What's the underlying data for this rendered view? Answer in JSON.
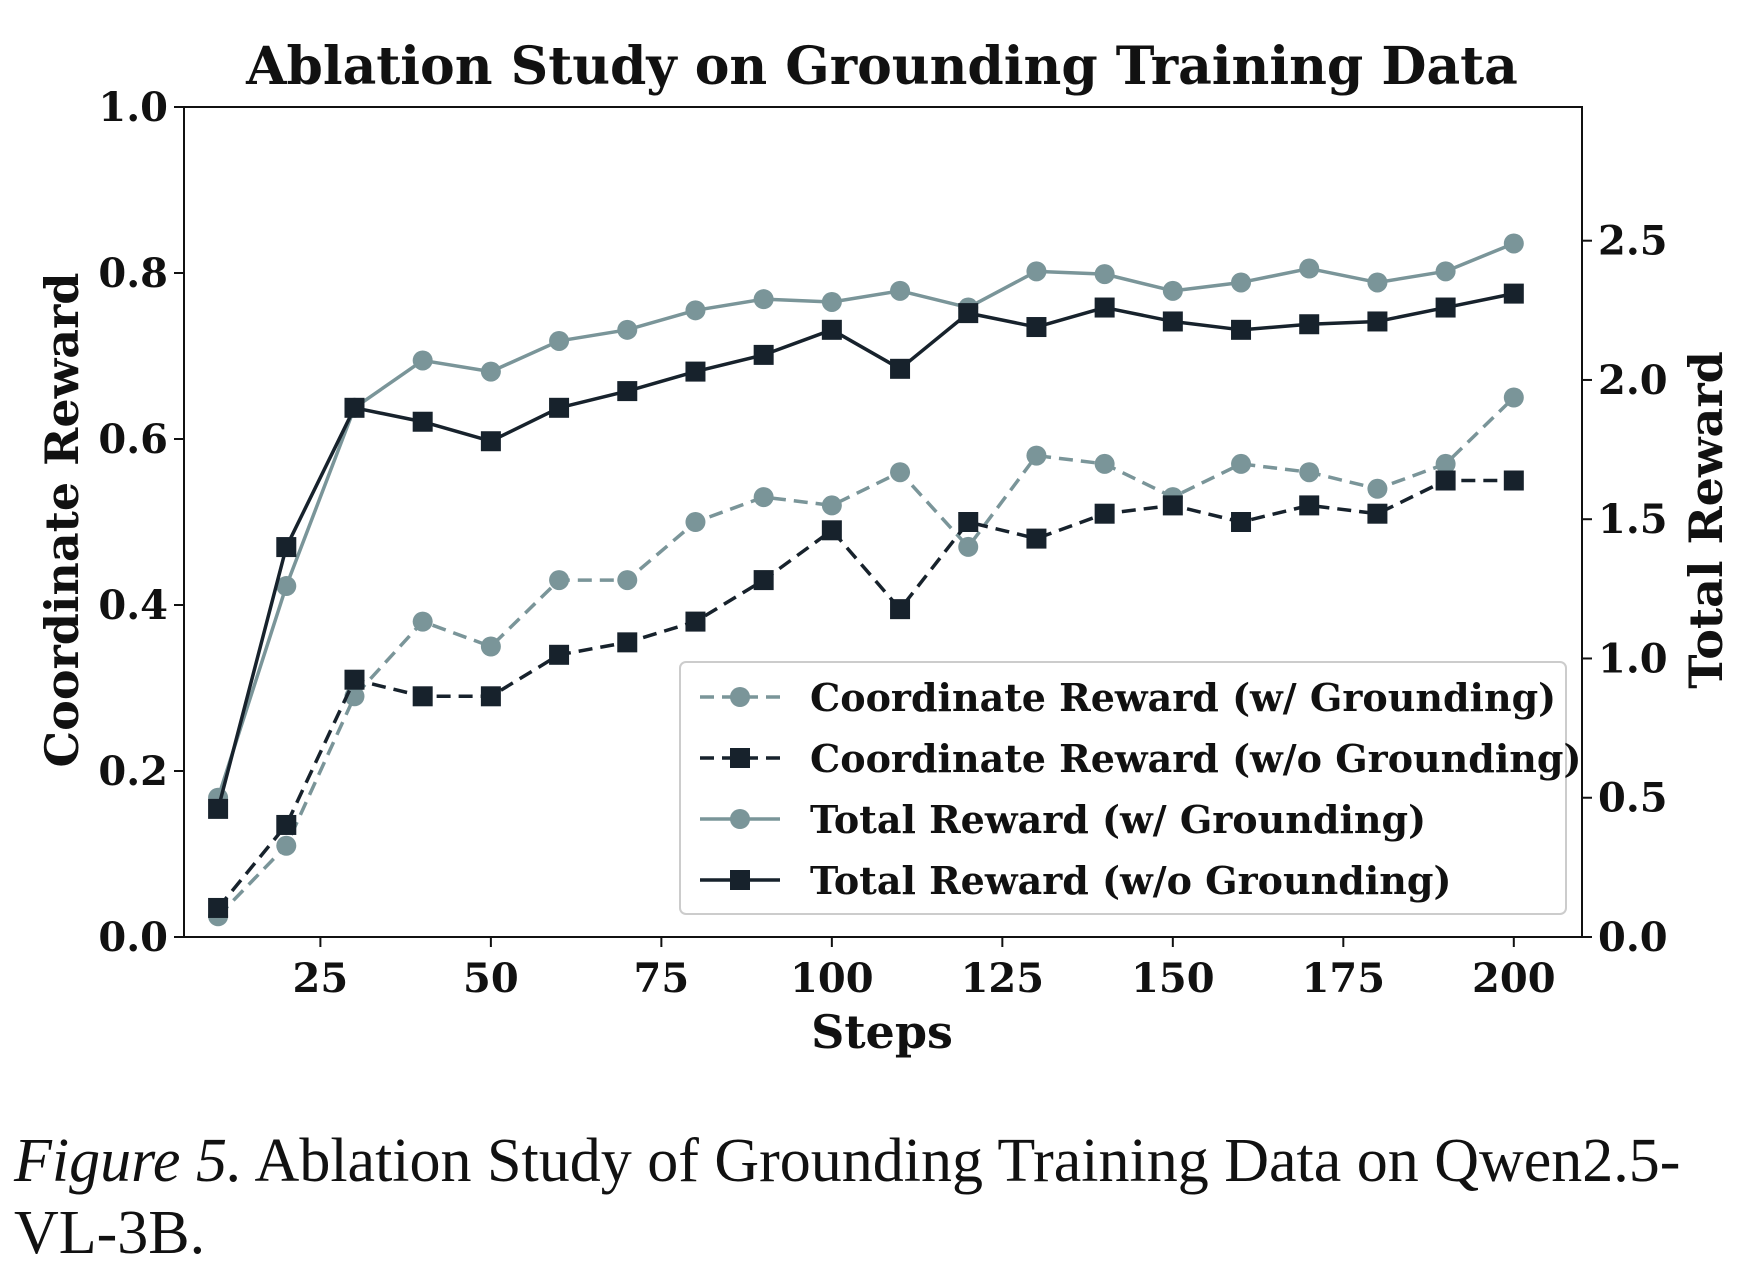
{
  "chart_data": {
    "type": "line",
    "title": "Ablation Study on Grounding Training Data",
    "xlabel": "Steps",
    "ylabel_left": "Coordinate Reward",
    "ylabel_right": "Total Reward",
    "xlim": [
      5,
      210
    ],
    "ylim_left": [
      0.0,
      1.0
    ],
    "ylim_right": [
      0.0,
      2.98
    ],
    "x_ticks": [
      25,
      50,
      75,
      100,
      125,
      150,
      175,
      200
    ],
    "y_ticks_left": [
      "0.0",
      "0.2",
      "0.4",
      "0.6",
      "0.8",
      "1.0"
    ],
    "y_ticks_right": [
      "0.0",
      "0.5",
      "1.0",
      "1.5",
      "2.0",
      "2.5"
    ],
    "grid": false,
    "legend_position": "lower-right",
    "x": [
      10,
      20,
      30,
      40,
      50,
      60,
      70,
      80,
      90,
      100,
      110,
      120,
      130,
      140,
      150,
      160,
      170,
      180,
      190,
      200
    ],
    "series": [
      {
        "name": "Coordinate Reward (w/ Grounding)",
        "axis": "left",
        "color": "#7a9599",
        "dash": true,
        "marker": "circle",
        "values": [
          0.025,
          0.11,
          0.29,
          0.38,
          0.35,
          0.43,
          0.43,
          0.5,
          0.53,
          0.52,
          0.56,
          0.47,
          0.58,
          0.57,
          0.53,
          0.57,
          0.56,
          0.54,
          0.57,
          0.65
        ]
      },
      {
        "name": "Coordinate Reward (w/o Grounding)",
        "axis": "left",
        "color": "#17222c",
        "dash": true,
        "marker": "square",
        "values": [
          0.035,
          0.135,
          0.31,
          0.29,
          0.29,
          0.34,
          0.355,
          0.38,
          0.43,
          0.49,
          0.395,
          0.5,
          0.48,
          0.51,
          0.52,
          0.5,
          0.52,
          0.51,
          0.55,
          0.55
        ]
      },
      {
        "name": "Total Reward (w/ Grounding)",
        "axis": "right",
        "color": "#7a9599",
        "dash": false,
        "marker": "circle",
        "values": [
          0.5,
          1.26,
          1.9,
          2.07,
          2.03,
          2.14,
          2.18,
          2.25,
          2.29,
          2.28,
          2.32,
          2.26,
          2.39,
          2.38,
          2.32,
          2.35,
          2.4,
          2.35,
          2.39,
          2.49
        ]
      },
      {
        "name": "Total Reward (w/o Grounding)",
        "axis": "right",
        "color": "#17222c",
        "dash": false,
        "marker": "square",
        "values": [
          0.46,
          1.4,
          1.9,
          1.85,
          1.78,
          1.9,
          1.96,
          2.03,
          2.09,
          2.18,
          2.04,
          2.24,
          2.19,
          2.26,
          2.21,
          2.18,
          2.2,
          2.21,
          2.26,
          2.31
        ]
      }
    ]
  },
  "caption": {
    "label": "Figure 5.",
    "text": "Ablation Study of Grounding Training Data on Qwen2.5-VL-3B."
  }
}
